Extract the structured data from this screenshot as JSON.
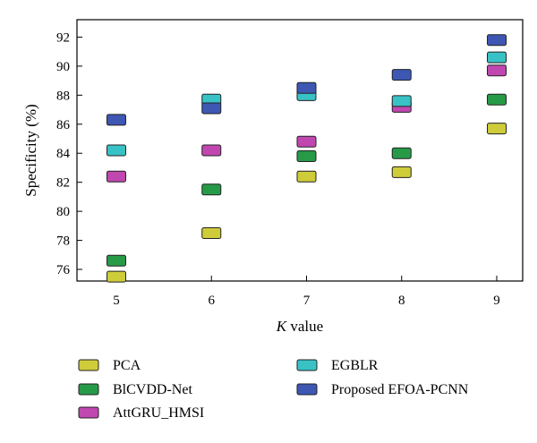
{
  "chart_data": {
    "type": "scatter",
    "marker": "rounded-square",
    "categories": [
      "5",
      "6",
      "7",
      "8",
      "9"
    ],
    "xlabel": {
      "italic": "K",
      "rest": " value"
    },
    "ylabel": "Specificity (%)",
    "ylim": [
      75.2,
      93.2
    ],
    "yticks": [
      76,
      78,
      80,
      82,
      84,
      86,
      88,
      90,
      92
    ],
    "grid": false,
    "legend_position": "bottom",
    "series": [
      {
        "name": "PCA",
        "color": "#cfcc3a",
        "values": [
          75.5,
          78.5,
          82.4,
          82.7,
          85.7
        ]
      },
      {
        "name": "BlCVDD-Net",
        "color": "#279a48",
        "values": [
          76.6,
          81.5,
          83.8,
          84.0,
          87.7
        ]
      },
      {
        "name": "AttGRU_HMSI",
        "color": "#c047b0",
        "values": [
          82.4,
          84.2,
          84.8,
          87.2,
          89.7
        ]
      },
      {
        "name": "EGBLR",
        "color": "#38c2c6",
        "values": [
          84.2,
          87.7,
          88.0,
          87.6,
          90.6
        ]
      },
      {
        "name": "Proposed EFOA-PCNN",
        "color": "#3d57b3",
        "values": [
          86.3,
          87.1,
          88.5,
          89.4,
          91.8
        ]
      }
    ]
  }
}
